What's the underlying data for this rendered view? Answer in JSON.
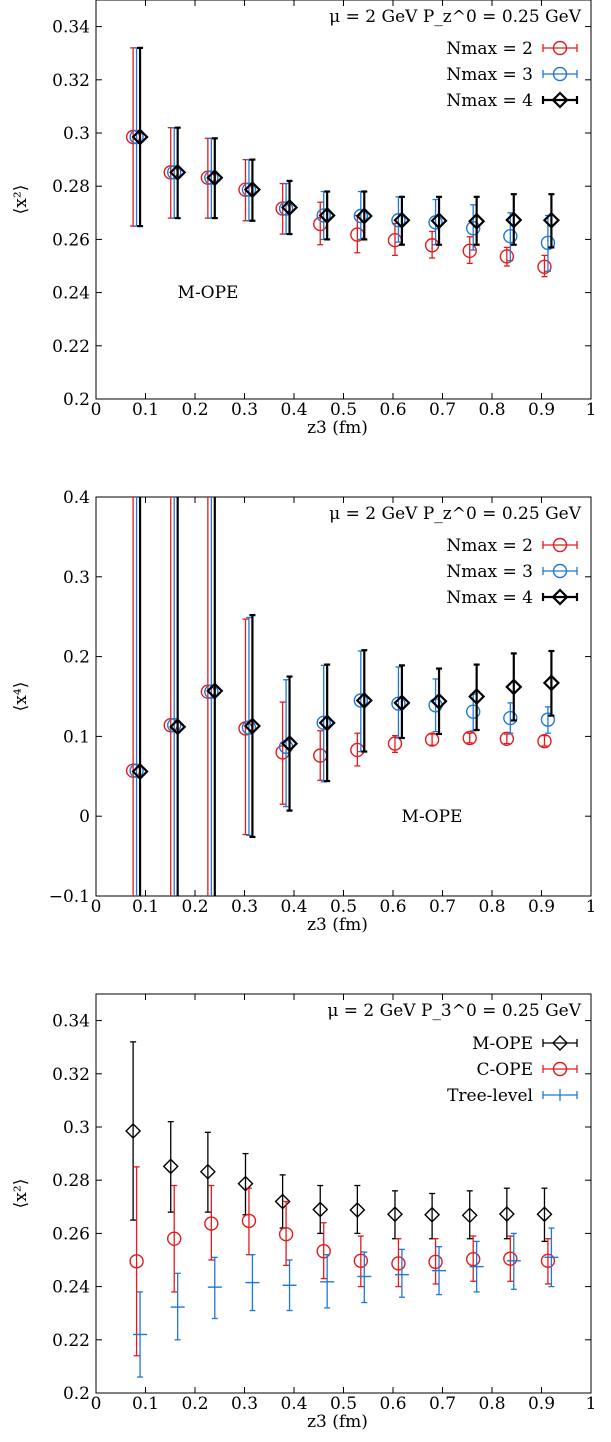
{
  "chart_data": [
    {
      "type": "scatter",
      "panel": "top",
      "header": "μ = 2 GeV P_z^0 = 0.25 GeV",
      "annotation": "M-OPE",
      "xlabel": "z3 (fm)",
      "ylabel": "⟨x²⟩",
      "xlim": [
        0,
        1
      ],
      "ylim": [
        0.2,
        0.35
      ],
      "xticks": [
        "0",
        "0.1",
        "0.2",
        "0.3",
        "0.4",
        "0.5",
        "0.6",
        "0.7",
        "0.8",
        "0.9",
        "1"
      ],
      "yticks": [
        "0.2",
        "0.22",
        "0.24",
        "0.26",
        "0.28",
        "0.3",
        "0.32",
        "0.34"
      ],
      "legend_position": "top-right",
      "series": [
        {
          "name": "N_max = 2",
          "legend": "Nmax = 2",
          "color": "#e41a1c",
          "marker": "circle",
          "points": [
            {
              "x": 0.075,
              "y": 0.2985,
              "lo": 0.265,
              "hi": 0.332
            },
            {
              "x": 0.151,
              "y": 0.2852,
              "lo": 0.268,
              "hi": 0.302
            },
            {
              "x": 0.226,
              "y": 0.2832,
              "lo": 0.268,
              "hi": 0.298
            },
            {
              "x": 0.302,
              "y": 0.2787,
              "lo": 0.267,
              "hi": 0.29
            },
            {
              "x": 0.377,
              "y": 0.2716,
              "lo": 0.262,
              "hi": 0.281
            },
            {
              "x": 0.453,
              "y": 0.2658,
              "lo": 0.258,
              "hi": 0.274
            },
            {
              "x": 0.528,
              "y": 0.2618,
              "lo": 0.255,
              "hi": 0.269
            },
            {
              "x": 0.604,
              "y": 0.2597,
              "lo": 0.254,
              "hi": 0.266
            },
            {
              "x": 0.679,
              "y": 0.2578,
              "lo": 0.253,
              "hi": 0.263
            },
            {
              "x": 0.755,
              "y": 0.2557,
              "lo": 0.251,
              "hi": 0.261
            },
            {
              "x": 0.83,
              "y": 0.2536,
              "lo": 0.25,
              "hi": 0.257
            },
            {
              "x": 0.906,
              "y": 0.2497,
              "lo": 0.246,
              "hi": 0.254
            }
          ]
        },
        {
          "name": "N_max = 3",
          "legend": "Nmax = 3",
          "color": "#1f78d4",
          "marker": "circle",
          "points": [
            {
              "x": 0.082,
              "y": 0.2985,
              "lo": 0.265,
              "hi": 0.332
            },
            {
              "x": 0.158,
              "y": 0.2852,
              "lo": 0.268,
              "hi": 0.302
            },
            {
              "x": 0.233,
              "y": 0.2832,
              "lo": 0.268,
              "hi": 0.298
            },
            {
              "x": 0.309,
              "y": 0.2787,
              "lo": 0.267,
              "hi": 0.29
            },
            {
              "x": 0.384,
              "y": 0.2716,
              "lo": 0.262,
              "hi": 0.281
            },
            {
              "x": 0.46,
              "y": 0.269,
              "lo": 0.26,
              "hi": 0.278
            },
            {
              "x": 0.535,
              "y": 0.2688,
              "lo": 0.26,
              "hi": 0.278
            },
            {
              "x": 0.611,
              "y": 0.2672,
              "lo": 0.259,
              "hi": 0.276
            },
            {
              "x": 0.686,
              "y": 0.2664,
              "lo": 0.258,
              "hi": 0.275
            },
            {
              "x": 0.762,
              "y": 0.2642,
              "lo": 0.256,
              "hi": 0.273
            },
            {
              "x": 0.837,
              "y": 0.2612,
              "lo": 0.252,
              "hi": 0.27
            },
            {
              "x": 0.913,
              "y": 0.2587,
              "lo": 0.248,
              "hi": 0.269
            }
          ]
        },
        {
          "name": "N_max = 4",
          "legend": "Nmax = 4",
          "color": "#000000",
          "marker": "diamond",
          "points": [
            {
              "x": 0.089,
              "y": 0.2985,
              "lo": 0.265,
              "hi": 0.332
            },
            {
              "x": 0.165,
              "y": 0.2852,
              "lo": 0.268,
              "hi": 0.302
            },
            {
              "x": 0.24,
              "y": 0.2832,
              "lo": 0.268,
              "hi": 0.298
            },
            {
              "x": 0.316,
              "y": 0.2787,
              "lo": 0.267,
              "hi": 0.29
            },
            {
              "x": 0.391,
              "y": 0.272,
              "lo": 0.262,
              "hi": 0.282
            },
            {
              "x": 0.467,
              "y": 0.269,
              "lo": 0.26,
              "hi": 0.278
            },
            {
              "x": 0.542,
              "y": 0.2688,
              "lo": 0.26,
              "hi": 0.278
            },
            {
              "x": 0.618,
              "y": 0.2672,
              "lo": 0.258,
              "hi": 0.276
            },
            {
              "x": 0.693,
              "y": 0.267,
              "lo": 0.258,
              "hi": 0.276
            },
            {
              "x": 0.769,
              "y": 0.2668,
              "lo": 0.258,
              "hi": 0.276
            },
            {
              "x": 0.844,
              "y": 0.2673,
              "lo": 0.258,
              "hi": 0.277
            },
            {
              "x": 0.92,
              "y": 0.2672,
              "lo": 0.257,
              "hi": 0.277
            }
          ]
        }
      ]
    },
    {
      "type": "scatter",
      "panel": "middle",
      "header": "μ = 2 GeV P_z^0 = 0.25 GeV",
      "annotation": "M-OPE",
      "xlabel": "z3 (fm)",
      "ylabel": "⟨x⁴⟩",
      "xlim": [
        0,
        1
      ],
      "ylim": [
        -0.1,
        0.4
      ],
      "xticks": [
        "0",
        "0.1",
        "0.2",
        "0.3",
        "0.4",
        "0.5",
        "0.6",
        "0.7",
        "0.8",
        "0.9",
        "1"
      ],
      "yticks": [
        "−0.1",
        "0",
        "0.1",
        "0.2",
        "0.3",
        "0.4"
      ],
      "legend_position": "top-right",
      "series": [
        {
          "name": "N_max = 2",
          "legend": "Nmax = 2",
          "color": "#e41a1c",
          "marker": "circle",
          "points": [
            {
              "x": 0.075,
              "y": 0.057,
              "lo": -0.15,
              "hi": 0.45
            },
            {
              "x": 0.151,
              "y": 0.114,
              "lo": -0.15,
              "hi": 0.45
            },
            {
              "x": 0.226,
              "y": 0.156,
              "lo": -0.15,
              "hi": 0.45
            },
            {
              "x": 0.302,
              "y": 0.11,
              "lo": -0.023,
              "hi": 0.247
            },
            {
              "x": 0.377,
              "y": 0.08,
              "lo": 0.015,
              "hi": 0.143
            },
            {
              "x": 0.453,
              "y": 0.076,
              "lo": 0.045,
              "hi": 0.107
            },
            {
              "x": 0.528,
              "y": 0.083,
              "lo": 0.063,
              "hi": 0.104
            },
            {
              "x": 0.604,
              "y": 0.091,
              "lo": 0.08,
              "hi": 0.101
            },
            {
              "x": 0.679,
              "y": 0.096,
              "lo": 0.089,
              "hi": 0.103
            },
            {
              "x": 0.755,
              "y": 0.098,
              "lo": 0.092,
              "hi": 0.104
            },
            {
              "x": 0.83,
              "y": 0.097,
              "lo": 0.091,
              "hi": 0.103
            },
            {
              "x": 0.906,
              "y": 0.094,
              "lo": 0.088,
              "hi": 0.101
            }
          ]
        },
        {
          "name": "N_max = 3",
          "legend": "Nmax = 3",
          "color": "#1f78d4",
          "marker": "circle",
          "points": [
            {
              "x": 0.082,
              "y": 0.057,
              "lo": -0.15,
              "hi": 0.45
            },
            {
              "x": 0.158,
              "y": 0.114,
              "lo": -0.15,
              "hi": 0.45
            },
            {
              "x": 0.233,
              "y": 0.156,
              "lo": -0.15,
              "hi": 0.45
            },
            {
              "x": 0.309,
              "y": 0.111,
              "lo": -0.024,
              "hi": 0.249
            },
            {
              "x": 0.384,
              "y": 0.087,
              "lo": 0.012,
              "hi": 0.171
            },
            {
              "x": 0.46,
              "y": 0.117,
              "lo": 0.043,
              "hi": 0.189
            },
            {
              "x": 0.535,
              "y": 0.145,
              "lo": 0.081,
              "hi": 0.207
            },
            {
              "x": 0.611,
              "y": 0.141,
              "lo": 0.098,
              "hi": 0.187
            },
            {
              "x": 0.686,
              "y": 0.139,
              "lo": 0.106,
              "hi": 0.172
            },
            {
              "x": 0.762,
              "y": 0.131,
              "lo": 0.107,
              "hi": 0.153
            },
            {
              "x": 0.837,
              "y": 0.123,
              "lo": 0.104,
              "hi": 0.142
            },
            {
              "x": 0.913,
              "y": 0.121,
              "lo": 0.104,
              "hi": 0.137
            }
          ]
        },
        {
          "name": "N_max = 4",
          "legend": "Nmax = 4",
          "color": "#000000",
          "marker": "diamond",
          "points": [
            {
              "x": 0.089,
              "y": 0.056,
              "lo": -0.15,
              "hi": 0.45
            },
            {
              "x": 0.165,
              "y": 0.112,
              "lo": -0.15,
              "hi": 0.45
            },
            {
              "x": 0.24,
              "y": 0.157,
              "lo": -0.15,
              "hi": 0.45
            },
            {
              "x": 0.316,
              "y": 0.113,
              "lo": -0.026,
              "hi": 0.252
            },
            {
              "x": 0.391,
              "y": 0.091,
              "lo": 0.007,
              "hi": 0.175
            },
            {
              "x": 0.467,
              "y": 0.117,
              "lo": 0.044,
              "hi": 0.19
            },
            {
              "x": 0.542,
              "y": 0.145,
              "lo": 0.081,
              "hi": 0.208
            },
            {
              "x": 0.618,
              "y": 0.142,
              "lo": 0.098,
              "hi": 0.189
            },
            {
              "x": 0.693,
              "y": 0.144,
              "lo": 0.103,
              "hi": 0.185
            },
            {
              "x": 0.769,
              "y": 0.15,
              "lo": 0.108,
              "hi": 0.19
            },
            {
              "x": 0.844,
              "y": 0.162,
              "lo": 0.12,
              "hi": 0.204
            },
            {
              "x": 0.92,
              "y": 0.167,
              "lo": 0.126,
              "hi": 0.207
            }
          ]
        }
      ]
    },
    {
      "type": "scatter",
      "panel": "bottom",
      "header": "μ = 2 GeV P_3^0 = 0.25 GeV",
      "annotation": "",
      "xlabel": "z3 (fm)",
      "ylabel": "⟨x²⟩",
      "xlim": [
        0,
        1
      ],
      "ylim": [
        0.2,
        0.35
      ],
      "xticks": [
        "0",
        "0.1",
        "0.2",
        "0.3",
        "0.4",
        "0.5",
        "0.6",
        "0.7",
        "0.8",
        "0.9",
        "1"
      ],
      "yticks": [
        "0.2",
        "0.22",
        "0.24",
        "0.26",
        "0.28",
        "0.3",
        "0.32",
        "0.34"
      ],
      "legend_position": "top-right",
      "series": [
        {
          "name": "M-OPE",
          "legend": "M-OPE",
          "color": "#000000",
          "marker": "diamond-open",
          "points": [
            {
              "x": 0.075,
              "y": 0.2985,
              "lo": 0.265,
              "hi": 0.332
            },
            {
              "x": 0.151,
              "y": 0.2852,
              "lo": 0.268,
              "hi": 0.302
            },
            {
              "x": 0.226,
              "y": 0.2832,
              "lo": 0.268,
              "hi": 0.298
            },
            {
              "x": 0.302,
              "y": 0.2787,
              "lo": 0.267,
              "hi": 0.29
            },
            {
              "x": 0.377,
              "y": 0.272,
              "lo": 0.262,
              "hi": 0.282
            },
            {
              "x": 0.453,
              "y": 0.269,
              "lo": 0.26,
              "hi": 0.278
            },
            {
              "x": 0.528,
              "y": 0.2688,
              "lo": 0.26,
              "hi": 0.278
            },
            {
              "x": 0.604,
              "y": 0.2672,
              "lo": 0.258,
              "hi": 0.276
            },
            {
              "x": 0.679,
              "y": 0.267,
              "lo": 0.258,
              "hi": 0.275
            },
            {
              "x": 0.755,
              "y": 0.2668,
              "lo": 0.258,
              "hi": 0.276
            },
            {
              "x": 0.83,
              "y": 0.2673,
              "lo": 0.258,
              "hi": 0.277
            },
            {
              "x": 0.906,
              "y": 0.2672,
              "lo": 0.257,
              "hi": 0.277
            }
          ]
        },
        {
          "name": "C-OPE",
          "legend": "C-OPE",
          "color": "#e41a1c",
          "marker": "circle",
          "points": [
            {
              "x": 0.082,
              "y": 0.2495,
              "lo": 0.214,
              "hi": 0.285
            },
            {
              "x": 0.158,
              "y": 0.258,
              "lo": 0.238,
              "hi": 0.278
            },
            {
              "x": 0.233,
              "y": 0.2637,
              "lo": 0.25,
              "hi": 0.278
            },
            {
              "x": 0.309,
              "y": 0.2647,
              "lo": 0.252,
              "hi": 0.277
            },
            {
              "x": 0.384,
              "y": 0.2597,
              "lo": 0.248,
              "hi": 0.272
            },
            {
              "x": 0.46,
              "y": 0.2533,
              "lo": 0.243,
              "hi": 0.264
            },
            {
              "x": 0.535,
              "y": 0.2497,
              "lo": 0.24,
              "hi": 0.259
            },
            {
              "x": 0.611,
              "y": 0.2487,
              "lo": 0.24,
              "hi": 0.258
            },
            {
              "x": 0.686,
              "y": 0.2493,
              "lo": 0.241,
              "hi": 0.258
            },
            {
              "x": 0.762,
              "y": 0.2503,
              "lo": 0.242,
              "hi": 0.259
            },
            {
              "x": 0.837,
              "y": 0.2505,
              "lo": 0.242,
              "hi": 0.259
            },
            {
              "x": 0.913,
              "y": 0.2497,
              "lo": 0.241,
              "hi": 0.258
            }
          ]
        },
        {
          "name": "Tree-level",
          "legend": "Tree-level",
          "color": "#1f78d4",
          "marker": "plus",
          "points": [
            {
              "x": 0.089,
              "y": 0.222,
              "lo": 0.206,
              "hi": 0.238
            },
            {
              "x": 0.165,
              "y": 0.2323,
              "lo": 0.22,
              "hi": 0.245
            },
            {
              "x": 0.24,
              "y": 0.2398,
              "lo": 0.228,
              "hi": 0.251
            },
            {
              "x": 0.316,
              "y": 0.2415,
              "lo": 0.231,
              "hi": 0.252
            },
            {
              "x": 0.391,
              "y": 0.2405,
              "lo": 0.231,
              "hi": 0.25
            },
            {
              "x": 0.467,
              "y": 0.2418,
              "lo": 0.232,
              "hi": 0.252
            },
            {
              "x": 0.542,
              "y": 0.2438,
              "lo": 0.234,
              "hi": 0.253
            },
            {
              "x": 0.618,
              "y": 0.2445,
              "lo": 0.236,
              "hi": 0.254
            },
            {
              "x": 0.693,
              "y": 0.246,
              "lo": 0.237,
              "hi": 0.255
            },
            {
              "x": 0.769,
              "y": 0.2475,
              "lo": 0.238,
              "hi": 0.257
            },
            {
              "x": 0.844,
              "y": 0.2497,
              "lo": 0.239,
              "hi": 0.26
            },
            {
              "x": 0.92,
              "y": 0.251,
              "lo": 0.24,
              "hi": 0.262
            }
          ]
        }
      ]
    }
  ]
}
